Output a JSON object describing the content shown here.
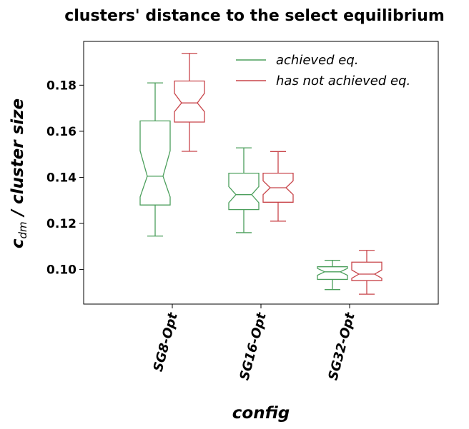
{
  "chart_data": {
    "type": "boxplot",
    "notched": true,
    "title": "clusters' distance to the select equilibrium",
    "xlabel": "config",
    "ylabel_main": "c",
    "ylabel_sub": "dm",
    "ylabel_rest": " / cluster size",
    "categories": [
      "SG8-Opt",
      "SG16-Opt",
      "SG32-Opt"
    ],
    "ylim": [
      0.085,
      0.199
    ],
    "yticks": [
      0.1,
      0.12,
      0.14,
      0.16,
      0.18
    ],
    "ytick_labels": [
      "0.10",
      "0.12",
      "0.14",
      "0.16",
      "0.18"
    ],
    "legend_position": "top-right",
    "series": [
      {
        "name": "achieved eq.",
        "color": "#4c9f5c",
        "boxes": [
          {
            "whislo": 0.1145,
            "q1": 0.128,
            "notchlo": 0.1315,
            "med": 0.1405,
            "notchhi": 0.1515,
            "q3": 0.1645,
            "whishi": 0.181
          },
          {
            "whislo": 0.116,
            "q1": 0.126,
            "notchlo": 0.129,
            "med": 0.1325,
            "notchhi": 0.136,
            "q3": 0.1418,
            "whishi": 0.1528
          },
          {
            "whislo": 0.0913,
            "q1": 0.0957,
            "notchlo": 0.0975,
            "med": 0.099,
            "notchhi": 0.1005,
            "q3": 0.1012,
            "whishi": 0.104
          }
        ]
      },
      {
        "name": "has not achieved eq.",
        "color": "#c8454a",
        "boxes": [
          {
            "whislo": 0.1513,
            "q1": 0.164,
            "notchlo": 0.1685,
            "med": 0.1723,
            "notchhi": 0.1765,
            "q3": 0.1818,
            "whishi": 0.1938
          },
          {
            "whislo": 0.121,
            "q1": 0.1292,
            "notchlo": 0.1325,
            "med": 0.1355,
            "notchhi": 0.1385,
            "q3": 0.1418,
            "whishi": 0.1512
          },
          {
            "whislo": 0.0893,
            "q1": 0.0952,
            "notchlo": 0.0962,
            "med": 0.098,
            "notchhi": 0.0998,
            "q3": 0.1032,
            "whishi": 0.1083
          }
        ]
      }
    ]
  }
}
